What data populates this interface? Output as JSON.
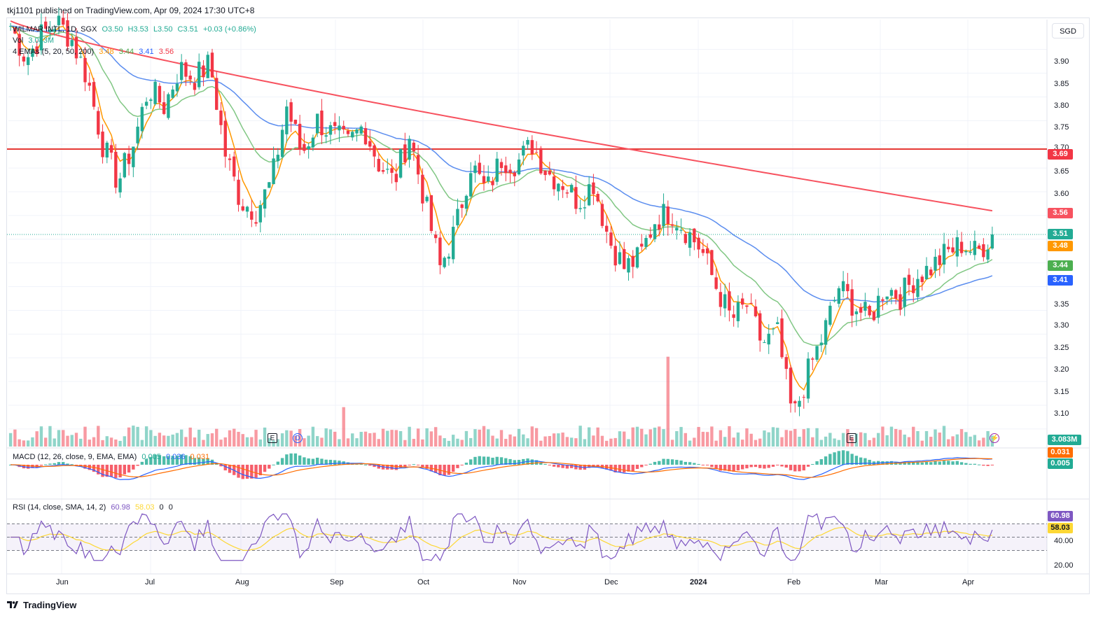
{
  "header": {
    "text": "tkj1101 published on TradingView.com, Apr 09, 2024 17:30 UTC+8"
  },
  "symbol_legend": {
    "symbol": "WILMAR INTL, 1D, SGX",
    "open": "O3.50",
    "high": "H3.53",
    "low": "L3.50",
    "close": "C3.51",
    "change": "+0.03 (+0.86%)",
    "vol_label": "Vol",
    "vol_value": "3.083M",
    "ema_label": "4 EMAs (5, 20, 50, 200)",
    "ema_values": [
      "3.48",
      "3.44",
      "3.41",
      "3.56"
    ]
  },
  "currency_button": "SGD",
  "macd_legend": {
    "label": "MACD (12, 26, close, 9, EMA, EMA)",
    "values": [
      "0.005",
      "0.036",
      "0.031"
    ]
  },
  "rsi_legend": {
    "label": "RSI (14, close, SMA, 14, 2)",
    "values": [
      "60.98",
      "58.03",
      "0",
      "0"
    ]
  },
  "price_axis": [
    "3.90",
    "3.85",
    "3.80",
    "3.75",
    "3.70",
    "3.65",
    "3.60",
    "3.55",
    "3.50",
    "3.45",
    "3.35",
    "3.30",
    "3.25",
    "3.20",
    "3.15",
    "3.10"
  ],
  "rsi_axis": [
    "40.00",
    "20.00"
  ],
  "price_tags": [
    {
      "text": "3.69",
      "color": "#f23645"
    },
    {
      "text": "3.56",
      "color": "#f7525f"
    },
    {
      "text": "3.51",
      "color": "#22ab94"
    },
    {
      "text": "3.48",
      "color": "#ff9800"
    },
    {
      "text": "3.44",
      "color": "#4caf50"
    },
    {
      "text": "3.41",
      "color": "#2962ff"
    }
  ],
  "volume_tag": {
    "text": "3.083M",
    "color": "#22ab94"
  },
  "macd_tags": [
    {
      "text": "0.031",
      "color": "#ff6d00"
    },
    {
      "text": "0.005",
      "color": "#22ab94"
    }
  ],
  "rsi_tags": [
    {
      "text": "60.98",
      "color": "#7e57c2"
    },
    {
      "text": "58.03",
      "color": "#fdd835"
    }
  ],
  "time_axis": [
    "Jun",
    "Jul",
    "Aug",
    "Sep",
    "Oct",
    "Nov",
    "Dec",
    "2024",
    "Feb",
    "Mar",
    "Apr"
  ],
  "event_markers": [
    "E",
    "D",
    "E"
  ],
  "footer": {
    "brand": "TradingView"
  },
  "colors": {
    "up": "#22ab94",
    "down": "#f23645",
    "ema5": "#ff9800",
    "ema20": "#81c784",
    "ema50": "#5b8def",
    "ema200": "#f7525f",
    "resistance": "#e53935"
  },
  "chart_data": {
    "type": "candlestick",
    "title": "WILMAR INTL, 1D, SGX",
    "ylim": [
      3.06,
      3.96
    ],
    "resistance_level": 3.69,
    "last_close": 3.51,
    "x": [
      "Jun",
      "Jul",
      "Aug",
      "Sep",
      "Oct",
      "Nov",
      "Dec",
      "2024",
      "Feb",
      "Mar",
      "Apr"
    ],
    "close_path": [
      3.95,
      3.88,
      3.93,
      3.96,
      3.92,
      3.84,
      3.7,
      3.62,
      3.7,
      3.82,
      3.78,
      3.86,
      3.84,
      3.87,
      3.68,
      3.58,
      3.56,
      3.62,
      3.78,
      3.68,
      3.75,
      3.72,
      3.7,
      3.74,
      3.66,
      3.62,
      3.72,
      3.58,
      3.44,
      3.52,
      3.66,
      3.6,
      3.67,
      3.66,
      3.7,
      3.64,
      3.62,
      3.58,
      3.62,
      3.5,
      3.44,
      3.46,
      3.54,
      3.56,
      3.52,
      3.48,
      3.4,
      3.33,
      3.36,
      3.28,
      3.3,
      3.12,
      3.22,
      3.3,
      3.4,
      3.36,
      3.33,
      3.4,
      3.38,
      3.42,
      3.44,
      3.47,
      3.49,
      3.47,
      3.51
    ],
    "series": [
      {
        "name": "EMA 5",
        "last": 3.48
      },
      {
        "name": "EMA 20",
        "last": 3.44
      },
      {
        "name": "EMA 50",
        "last": 3.41
      },
      {
        "name": "EMA 200",
        "last": 3.56
      }
    ],
    "volume_last": "3.083M",
    "macd": {
      "histogram": 0.005,
      "macd": 0.036,
      "signal": 0.031
    },
    "rsi": {
      "rsi": 60.98,
      "sma": 58.03,
      "upper": 70,
      "lower": 30
    }
  }
}
